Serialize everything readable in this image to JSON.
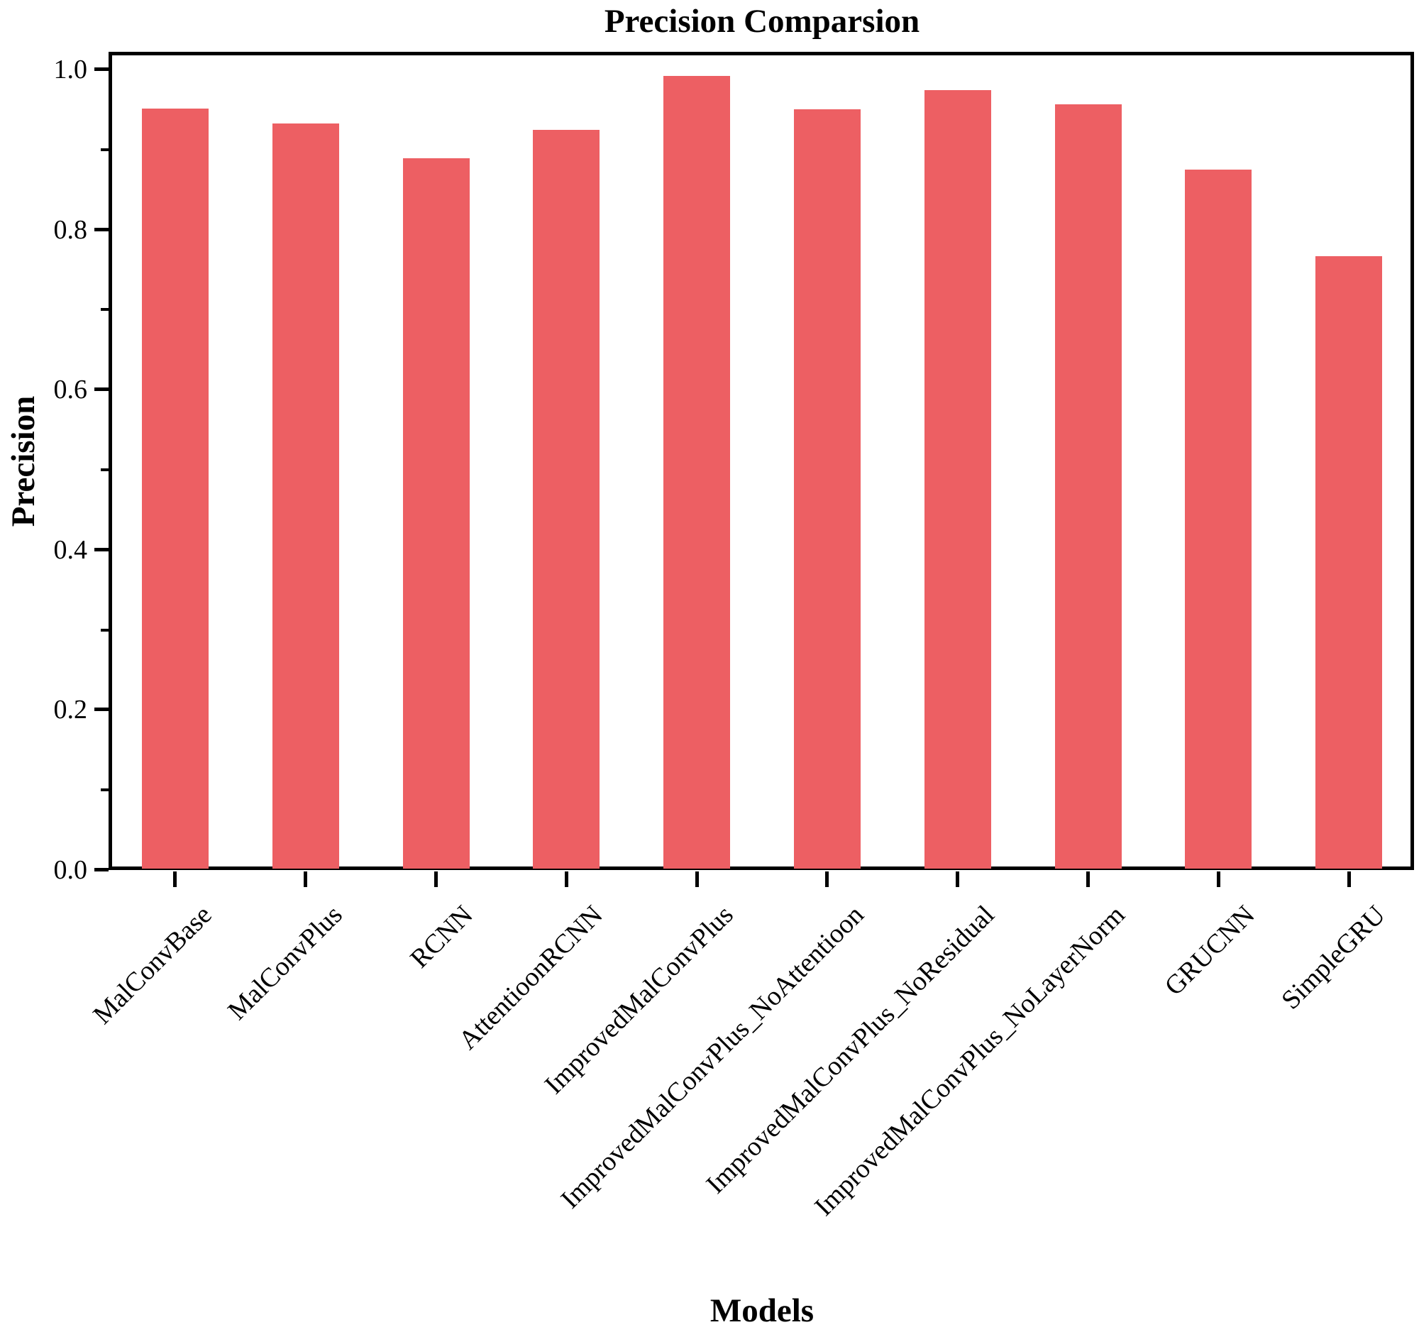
{
  "chart_data": {
    "type": "bar",
    "title": "Precision Comparsion",
    "xlabel": "Models",
    "ylabel": "Precision",
    "categories": [
      "MalConvBase",
      "MalConvPlus",
      "RCNN",
      "AttentioonRCNN",
      "ImprovedMalConvPlus",
      "ImprovedMalConvPlus_NoAttentioon",
      "ImprovedMalConvPlus_NoResidual",
      "ImprovedMalConvPlus_NoLayerNorm",
      "GRUCNN",
      "SimpleGRU"
    ],
    "values": [
      0.951,
      0.933,
      0.889,
      0.925,
      0.992,
      0.95,
      0.974,
      0.957,
      0.875,
      0.767
    ],
    "ylim": [
      0.0,
      1.02
    ],
    "yticks_major": [
      0.0,
      0.2,
      0.4,
      0.6,
      0.8,
      1.0
    ],
    "ytick_labels": [
      "0.0",
      "0.2",
      "0.4",
      "0.6",
      "0.8",
      "1.0"
    ],
    "yticks_minor": [
      0.1,
      0.3,
      0.5,
      0.7,
      0.9
    ],
    "x_tick_label_rotation_deg": 45,
    "bar_color": "#ED5F63",
    "axis_color": "#000000",
    "text_color": "#000000",
    "background_color": "#FFFFFF",
    "grid": false,
    "legend": null
  }
}
